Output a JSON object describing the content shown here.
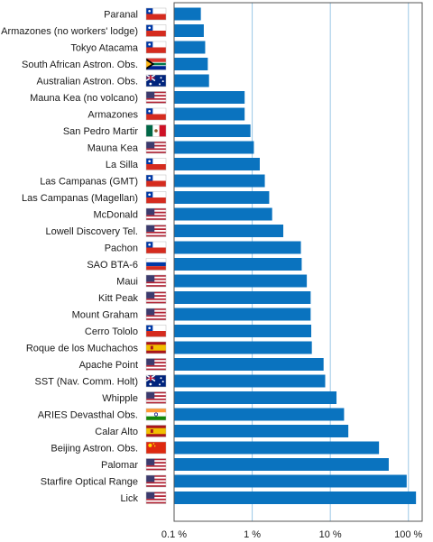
{
  "chart_data": {
    "type": "bar",
    "orientation": "horizontal",
    "x_scale": "log",
    "xlim": [
      0.1,
      150
    ],
    "grid": true,
    "xticks": [
      {
        "value": 0.1,
        "label": "0.1 %"
      },
      {
        "value": 1,
        "label": "1 %"
      },
      {
        "value": 10,
        "label": "10 %"
      },
      {
        "value": 100,
        "label": "100 %"
      }
    ],
    "bar_color": "#0a73bf",
    "grid_color": "#9bc7e6",
    "categories": [
      {
        "label": "Paranal",
        "flag": "chile",
        "value": 0.22
      },
      {
        "label": "Armazones (no workers' lodge)",
        "flag": "chile",
        "value": 0.24
      },
      {
        "label": "Tokyo Atacama",
        "flag": "chile",
        "value": 0.25
      },
      {
        "label": "South African Astron. Obs.",
        "flag": "south-africa",
        "value": 0.27
      },
      {
        "label": "Australian Astron. Obs.",
        "flag": "australia",
        "value": 0.28
      },
      {
        "label": "Mauna Kea (no volcano)",
        "flag": "usa",
        "value": 0.8
      },
      {
        "label": "Armazones",
        "flag": "chile",
        "value": 0.8
      },
      {
        "label": "San Pedro Martir",
        "flag": "mexico",
        "value": 0.95
      },
      {
        "label": "Mauna Kea",
        "flag": "usa",
        "value": 1.05
      },
      {
        "label": "La Silla",
        "flag": "chile",
        "value": 1.25
      },
      {
        "label": "Las Campanas (GMT)",
        "flag": "chile",
        "value": 1.45
      },
      {
        "label": "Las Campanas (Magellan)",
        "flag": "chile",
        "value": 1.65
      },
      {
        "label": "McDonald",
        "flag": "usa",
        "value": 1.8
      },
      {
        "label": "Lowell Discovery Tel.",
        "flag": "usa",
        "value": 2.5
      },
      {
        "label": "Pachon",
        "flag": "chile",
        "value": 4.2
      },
      {
        "label": "SAO BTA-6",
        "flag": "russia",
        "value": 4.3
      },
      {
        "label": "Maui",
        "flag": "usa",
        "value": 5.0
      },
      {
        "label": "Kitt Peak",
        "flag": "usa",
        "value": 5.6
      },
      {
        "label": "Mount Graham",
        "flag": "usa",
        "value": 5.6
      },
      {
        "label": "Cerro Tololo",
        "flag": "chile",
        "value": 5.7
      },
      {
        "label": "Roque de los Muchachos",
        "flag": "spain",
        "value": 5.8
      },
      {
        "label": "Apache Point",
        "flag": "usa",
        "value": 8.2
      },
      {
        "label": "SST (Nav. Comm. Holt)",
        "flag": "australia",
        "value": 8.6
      },
      {
        "label": "Whipple",
        "flag": "usa",
        "value": 12
      },
      {
        "label": "ARIES Devasthal Obs.",
        "flag": "india",
        "value": 15
      },
      {
        "label": "Calar Alto",
        "flag": "spain",
        "value": 17
      },
      {
        "label": "Beijing Astron. Obs.",
        "flag": "china",
        "value": 42
      },
      {
        "label": "Palomar",
        "flag": "usa",
        "value": 56
      },
      {
        "label": "Starfire Optical Range",
        "flag": "usa",
        "value": 95
      },
      {
        "label": "Lick",
        "flag": "usa",
        "value": 125
      }
    ]
  }
}
